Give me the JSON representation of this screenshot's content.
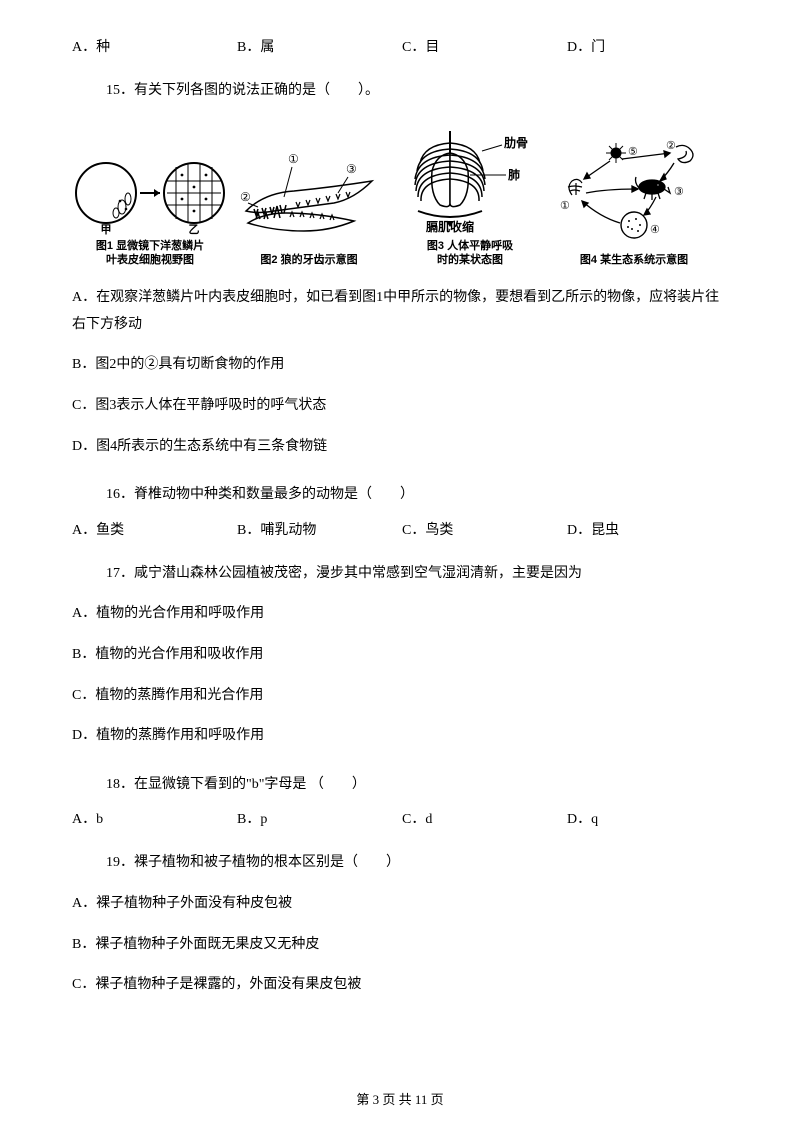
{
  "q14": {
    "a": "A．种",
    "b": "B．属",
    "c": "C．目",
    "d": "D．门"
  },
  "q15": {
    "stem": "15．有关下列各图的说法正确的是（　　）。",
    "captions": {
      "fig1": "图1 显微镜下洋葱鳞片\n叶表皮细胞视野图",
      "fig2": "图2 狼的牙齿示意图",
      "fig3": "图3 人体平静呼吸\n时的某状态图",
      "fig4": "图4 某生态系统示意图"
    },
    "fig1_labels": {
      "jia": "甲",
      "yi": "乙"
    },
    "fig3_labels": {
      "rib": "肋骨",
      "lung": "肺",
      "dia": "膈肌收缩"
    },
    "a": "A．在观察洋葱鳞片叶内表皮细胞时，如已看到图1中甲所示的物像，要想看到乙所示的物像，应将装片往右下方移动",
    "b": "B．图2中的②具有切断食物的作用",
    "c": "C．图3表示人体在平静呼吸时的呼气状态",
    "d": "D．图4所表示的生态系统中有三条食物链"
  },
  "q16": {
    "stem": "16．脊椎动物中种类和数量最多的动物是（　　）",
    "a": "A．鱼类",
    "b": "B．哺乳动物",
    "c": "C．鸟类",
    "d": "D．昆虫"
  },
  "q17": {
    "stem": "17．咸宁潜山森林公园植被茂密，漫步其中常感到空气湿润清新，主要是因为",
    "a": "A．植物的光合作用和呼吸作用",
    "b": "B．植物的光合作用和吸收作用",
    "c": "C．植物的蒸腾作用和光合作用",
    "d": "D．植物的蒸腾作用和呼吸作用"
  },
  "q18": {
    "stem": "18．在显微镜下看到的\"b\"字母是 （　　）",
    "a": "A．b",
    "b": "B．p",
    "c": "C．d",
    "d": "D．q"
  },
  "q19": {
    "stem": "19．裸子植物和被子植物的根本区别是（　　）",
    "a": "A．裸子植物种子外面没有种皮包被",
    "b": "B．裸子植物种子外面既无果皮又无种皮",
    "c": "C．裸子植物种子是裸露的，外面没有果皮包被"
  },
  "footer": "第 3 页 共 11 页",
  "colors": {
    "text": "#000000",
    "bg": "#ffffff"
  }
}
